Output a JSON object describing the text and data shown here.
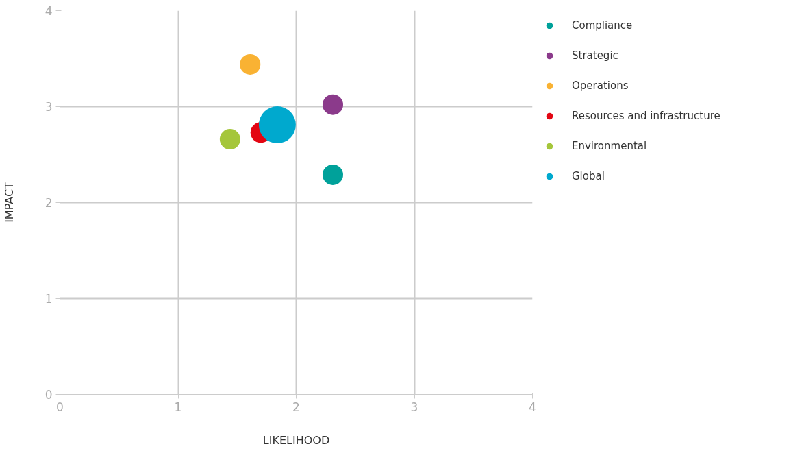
{
  "chart_data": {
    "type": "bubble",
    "xlabel": "LIKELIHOOD",
    "ylabel": "IMPACT",
    "xlim": [
      0,
      4
    ],
    "ylim": [
      0,
      4
    ],
    "xticks": [
      0,
      1,
      2,
      3,
      4
    ],
    "yticks": [
      0,
      1,
      2,
      3,
      4
    ],
    "grid": true,
    "legend": "top right",
    "marker": "circle",
    "series": [
      {
        "name": "Compliance",
        "color": "#00a19a",
        "x": [
          2.31
        ],
        "values": [
          2.29
        ],
        "sizes": [
          0.31
        ]
      },
      {
        "name": "Strategic",
        "color": "#8b3a8b",
        "x": [
          2.31
        ],
        "values": [
          3.02
        ],
        "sizes": [
          0.31
        ]
      },
      {
        "name": "Operations",
        "color": "#f9b233",
        "x": [
          1.61
        ],
        "values": [
          3.44
        ],
        "sizes": [
          0.31
        ]
      },
      {
        "name": "Resources and infrastructure",
        "color": "#e30613",
        "x": [
          1.7
        ],
        "values": [
          2.73
        ],
        "sizes": [
          0.31
        ]
      },
      {
        "name": "Environmental",
        "color": "#a5c63b",
        "x": [
          1.44
        ],
        "values": [
          2.66
        ],
        "sizes": [
          0.31
        ]
      },
      {
        "name": "Global",
        "color": "#00a9ce",
        "x": [
          1.84
        ],
        "values": [
          2.81
        ],
        "sizes": [
          1
        ]
      }
    ]
  }
}
